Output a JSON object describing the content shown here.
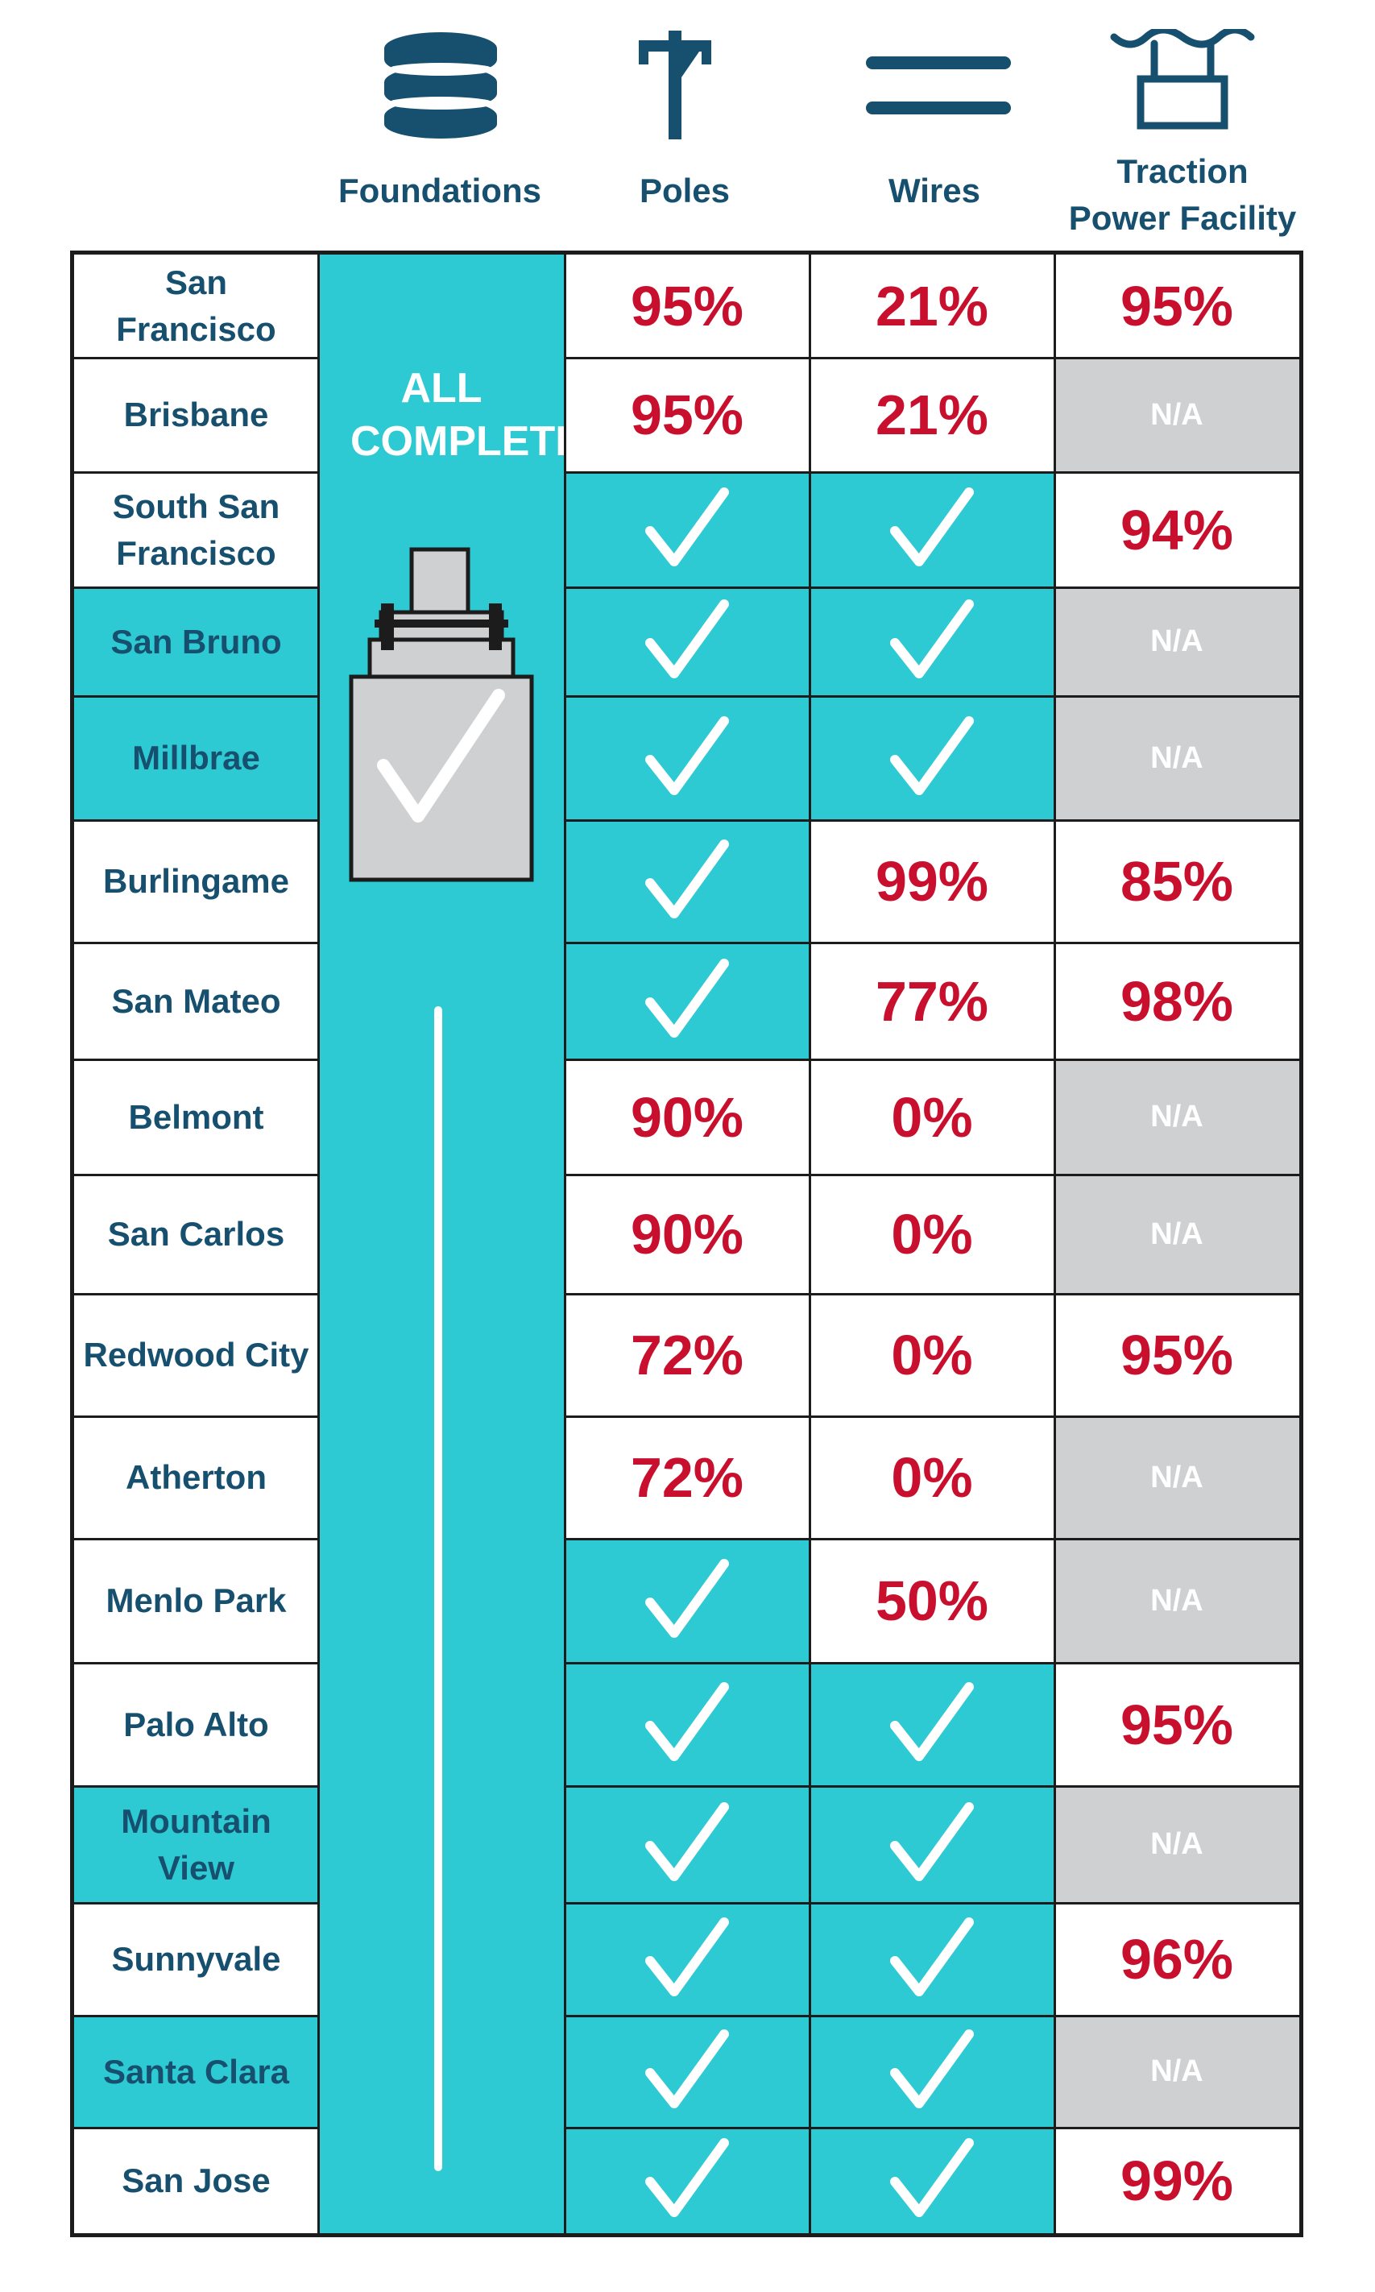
{
  "headers": {
    "foundations": "Foundations",
    "poles": "Poles",
    "wires": "Wires",
    "traction": "Traction Power Facility"
  },
  "foundations_status": "ALL COMPLETE!",
  "colors": {
    "navy": "#17506f",
    "teal": "#2ecad3",
    "red": "#c8102e",
    "gray": "#cfd0d2",
    "border": "#1c1c1c"
  },
  "icons": {
    "foundations": "stacked-discs-icon",
    "poles": "utility-pole-icon",
    "wires": "double-line-icon",
    "traction": "power-facility-icon",
    "foundation_column": "pole-foundation-check-icon",
    "complete": "checkmark-icon"
  },
  "rows": [
    {
      "city": "San Francisco",
      "city_done": false,
      "poles": "95%",
      "wires": "21%",
      "traction": "95%"
    },
    {
      "city": "Brisbane",
      "city_done": false,
      "poles": "95%",
      "wires": "21%",
      "traction": "N/A"
    },
    {
      "city": "South San Francisco",
      "city_done": false,
      "poles": "check",
      "wires": "check",
      "traction": "94%"
    },
    {
      "city": "San Bruno",
      "city_done": true,
      "poles": "check",
      "wires": "check",
      "traction": "N/A"
    },
    {
      "city": "Millbrae",
      "city_done": true,
      "poles": "check",
      "wires": "check",
      "traction": "N/A"
    },
    {
      "city": "Burlingame",
      "city_done": false,
      "poles": "check",
      "wires": "99%",
      "traction": "85%"
    },
    {
      "city": "San Mateo",
      "city_done": false,
      "poles": "check",
      "wires": "77%",
      "traction": "98%"
    },
    {
      "city": "Belmont",
      "city_done": false,
      "poles": "90%",
      "wires": "0%",
      "traction": "N/A"
    },
    {
      "city": "San Carlos",
      "city_done": false,
      "poles": "90%",
      "wires": "0%",
      "traction": "N/A"
    },
    {
      "city": "Redwood City",
      "city_done": false,
      "poles": "72%",
      "wires": "0%",
      "traction": "95%"
    },
    {
      "city": "Atherton",
      "city_done": false,
      "poles": "72%",
      "wires": "0%",
      "traction": "N/A"
    },
    {
      "city": "Menlo Park",
      "city_done": false,
      "poles": "check",
      "wires": "50%",
      "traction": "N/A"
    },
    {
      "city": "Palo Alto",
      "city_done": false,
      "poles": "check",
      "wires": "check",
      "traction": "95%"
    },
    {
      "city": "Mountain View",
      "city_done": true,
      "poles": "check",
      "wires": "check",
      "traction": "N/A"
    },
    {
      "city": "Sunnyvale",
      "city_done": false,
      "poles": "check",
      "wires": "check",
      "traction": "96%"
    },
    {
      "city": "Santa Clara",
      "city_done": true,
      "poles": "check",
      "wires": "check",
      "traction": "N/A"
    },
    {
      "city": "San Jose",
      "city_done": false,
      "poles": "check",
      "wires": "check",
      "traction": "99%"
    }
  ]
}
